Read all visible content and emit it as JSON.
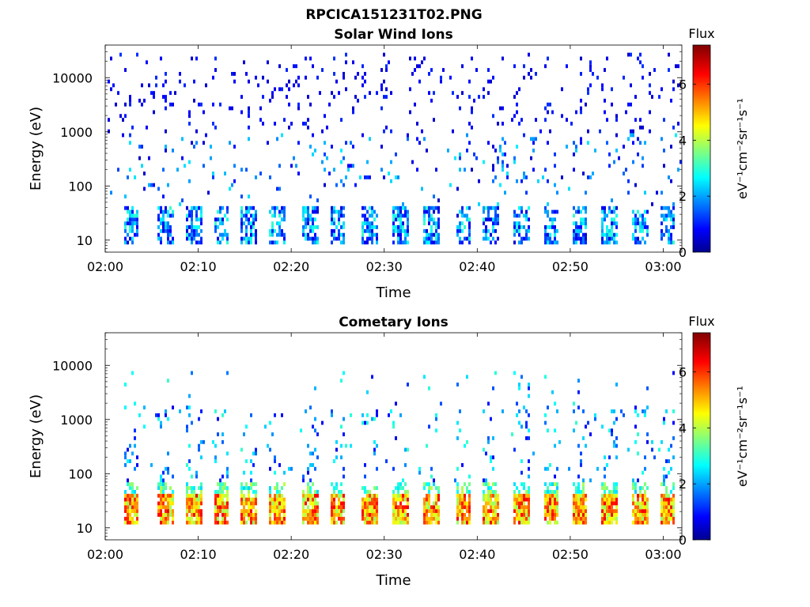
{
  "figure": {
    "title": "RPCICA151231T02.PNG"
  },
  "chart_data": [
    {
      "type": "heatmap",
      "title": "Solar Wind Ions",
      "xlabel": "Time",
      "ylabel": "Energy (eV)",
      "xlim": [
        "02:00",
        "03:02"
      ],
      "x_ticks": [
        "02:00",
        "02:10",
        "02:20",
        "02:30",
        "02:40",
        "02:50",
        "03:00"
      ],
      "yscale": "log",
      "ylim": [
        6,
        40000
      ],
      "y_ticks": [
        "10",
        "100",
        "1000",
        "10000"
      ],
      "colorbar": {
        "label": "eV⁻¹cm⁻²sr⁻¹s⁻¹",
        "title": "Flux",
        "range": [
          0,
          7.4
        ],
        "ticks": [
          "0",
          "2",
          "4",
          "6"
        ],
        "colormap": "jet"
      },
      "periodic_burst_minutes": [
        2.8,
        6.5,
        9.5,
        12.5,
        15.5,
        18.5,
        22.0,
        25.0,
        28.5,
        31.7,
        35.0,
        38.5,
        41.5,
        44.8,
        48.0,
        51.0,
        54.3,
        57.5,
        60.5
      ],
      "notes": "Sparse low-flux blue pixels spread from ~10 eV to ~30000 eV; low energy (8-40 eV) bands with blue/cyan flux about every 3 minutes"
    },
    {
      "type": "heatmap",
      "title": "Cometary Ions",
      "xlabel": "Time",
      "ylabel": "Energy (eV)",
      "xlim": [
        "02:00",
        "03:02"
      ],
      "x_ticks": [
        "02:00",
        "02:10",
        "02:20",
        "02:30",
        "02:40",
        "02:50",
        "03:00"
      ],
      "yscale": "log",
      "ylim": [
        6,
        40000
      ],
      "y_ticks": [
        "10",
        "100",
        "1000",
        "10000"
      ],
      "colorbar": {
        "label": "eV⁻¹cm⁻²sr⁻¹s⁻¹",
        "title": "Flux",
        "range": [
          0,
          7.4
        ],
        "ticks": [
          "0",
          "2",
          "4",
          "6"
        ],
        "colormap": "jet"
      },
      "periodic_burst_minutes": [
        2.8,
        6.5,
        9.5,
        12.5,
        15.5,
        18.5,
        22.0,
        25.0,
        28.5,
        31.7,
        35.0,
        38.5,
        41.5,
        44.8,
        48.0,
        51.0,
        54.3,
        57.5,
        60.5
      ],
      "notes": "Intense (yellow-red, flux 4-6.5) bands at 12-45 eV about every 3 minutes; sparse scattered pixels up to ~8000 eV"
    }
  ]
}
